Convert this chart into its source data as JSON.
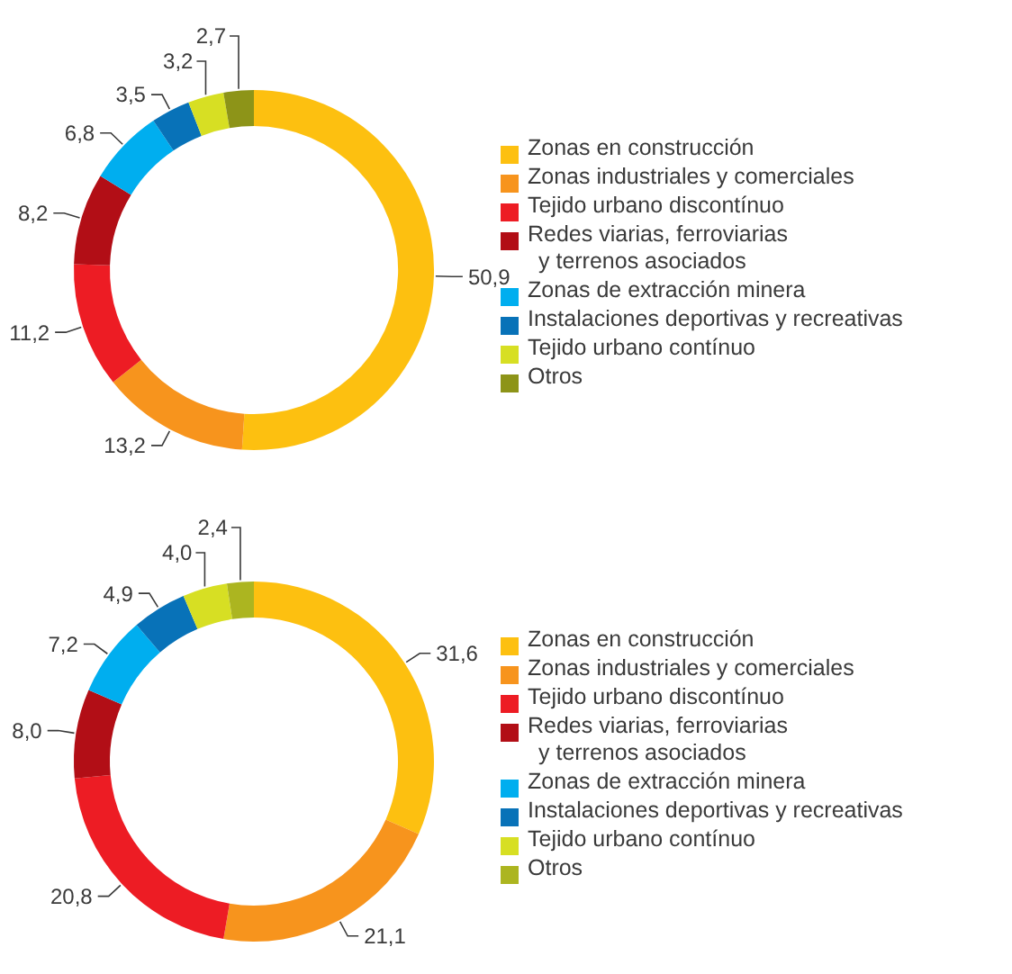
{
  "chart_data": [
    {
      "type": "donut",
      "categories": [
        "Zonas en construcción",
        "Zonas industriales y comerciales",
        "Tejido urbano discontínuo",
        "Redes viarias, ferroviarias\ny terrenos asociados",
        "Zonas de extracción minera",
        "Instalaciones deportivas y recreativas",
        "Tejido urbano contínuo",
        "Otros"
      ],
      "values": [
        50.9,
        13.2,
        11.2,
        8.2,
        6.8,
        3.5,
        3.2,
        2.7
      ],
      "value_labels": [
        "50,9",
        "13,2",
        "11,2",
        "8,2",
        "6,8",
        "3,5",
        "3,2",
        "2,7"
      ],
      "colors": [
        "#fdc010",
        "#f7941d",
        "#ed1c24",
        "#b20e16",
        "#00aeef",
        "#0872b8",
        "#d7df23",
        "#8d9418"
      ],
      "legend": "right"
    },
    {
      "type": "donut",
      "categories": [
        "Zonas en construcción",
        "Zonas industriales y comerciales",
        "Tejido urbano discontínuo",
        "Redes viarias, ferroviarias\ny terrenos asociados",
        "Zonas de extracción minera",
        "Instalaciones deportivas y recreativas",
        "Tejido urbano contínuo",
        "Otros"
      ],
      "values": [
        31.6,
        21.1,
        20.8,
        8.0,
        7.2,
        4.9,
        4.0,
        2.4
      ],
      "value_labels": [
        "31,6",
        "21,1",
        "20,8",
        "8,0",
        "7,2",
        "4,9",
        "4,0",
        "2,4"
      ],
      "colors": [
        "#fdc010",
        "#f7941d",
        "#ed1c24",
        "#b20e16",
        "#00aeef",
        "#0872b8",
        "#d7df23",
        "#acb520"
      ],
      "legend": "right"
    }
  ]
}
